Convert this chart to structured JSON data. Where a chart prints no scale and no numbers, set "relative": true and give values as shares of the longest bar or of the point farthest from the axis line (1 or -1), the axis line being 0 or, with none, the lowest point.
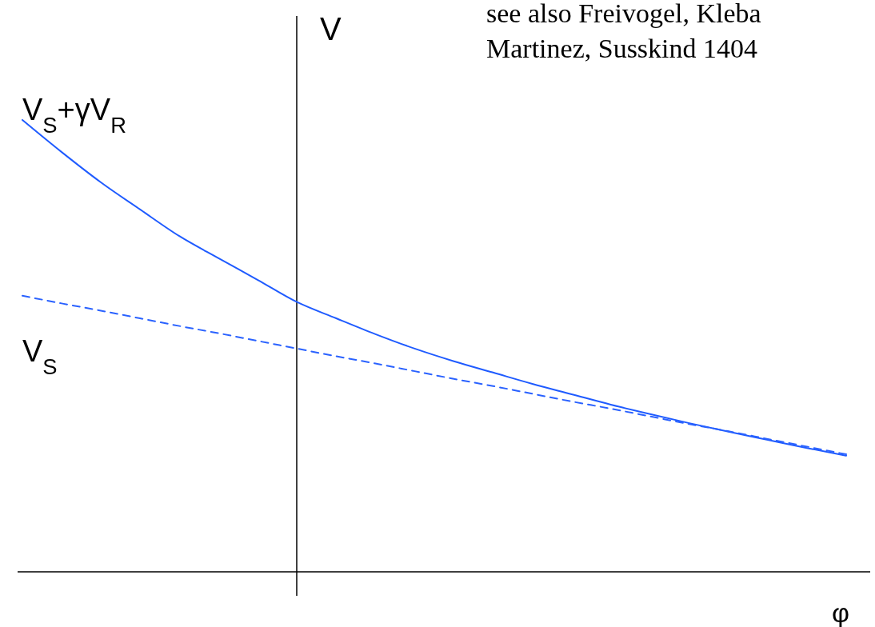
{
  "chart_data": {
    "type": "line",
    "relative": true,
    "xlabel": "φ",
    "ylabel": "V",
    "categories": [
      null,
      null,
      null,
      null,
      null,
      null,
      null,
      null,
      null,
      null,
      null,
      null,
      null,
      null,
      null,
      null,
      null,
      null,
      null,
      null,
      null,
      null
    ],
    "series": [
      {
        "name": "V$_{S}$+γV$_{R}$",
        "color": "#1f5bff",
        "line_style": "solid",
        "values": [
          1.0,
          0.929,
          0.862,
          0.802,
          0.743,
          0.694,
          0.646,
          0.597,
          0.561,
          0.526,
          0.494,
          0.466,
          0.441,
          0.416,
          0.393,
          0.37,
          0.349,
          0.329,
          0.31,
          0.292,
          0.274,
          0.257
        ]
      },
      {
        "name": "V$_{S}$",
        "color": "#2a62ff",
        "line_style": "dashed",
        "values": [
          0.611,
          0.594,
          0.578,
          0.561,
          0.544,
          0.528,
          0.511,
          0.494,
          0.477,
          0.461,
          0.444,
          0.427,
          0.411,
          0.394,
          0.377,
          0.361,
          0.344,
          0.327,
          0.311,
          0.294,
          0.277,
          0.26
        ]
      }
    ],
    "annotations": [
      "see also Freivogel, Kleba",
      "Martinez, Susskind 1404"
    ]
  }
}
